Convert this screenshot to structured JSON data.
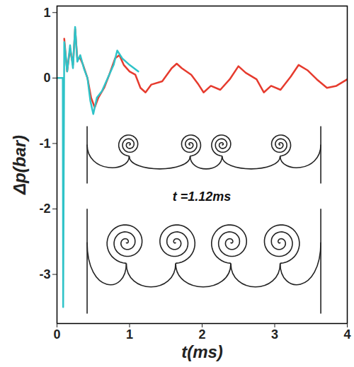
{
  "chart_data": {
    "type": "line",
    "x_label": "t(ms)",
    "y_label": "Δp(bar)",
    "annotation": "t =1.12ms",
    "xlim": [
      0,
      4
    ],
    "ylim": [
      -3.75,
      1.1
    ],
    "xticks": [
      0,
      1,
      2,
      3,
      4
    ],
    "yticks": [
      -3,
      -2,
      -1,
      0,
      1
    ],
    "grid": false,
    "series": [
      {
        "color": "#e63b2e",
        "x": [
          0.1,
          0.14,
          0.18,
          0.22,
          0.25,
          0.28,
          0.32,
          0.36,
          0.42,
          0.47,
          0.52,
          0.57,
          0.65,
          0.72,
          0.8,
          0.86,
          0.92,
          1.0,
          1.08,
          1.15,
          1.22,
          1.3,
          1.45,
          1.58,
          1.65,
          1.72,
          1.85,
          1.95,
          2.02,
          2.12,
          2.25,
          2.38,
          2.5,
          2.6,
          2.75,
          2.85,
          2.95,
          3.08,
          3.22,
          3.33,
          3.45,
          3.58,
          3.72,
          3.85,
          4.0
        ],
        "values": [
          0.6,
          0.1,
          0.45,
          0.2,
          0.75,
          0.3,
          0.3,
          0.2,
          0.0,
          -0.3,
          -0.45,
          -0.3,
          -0.15,
          0.05,
          0.3,
          0.35,
          0.2,
          0.1,
          0.05,
          -0.15,
          -0.22,
          -0.1,
          -0.05,
          0.15,
          0.22,
          0.15,
          0.05,
          -0.1,
          -0.22,
          -0.12,
          -0.18,
          -0.02,
          0.18,
          0.08,
          -0.02,
          -0.22,
          -0.12,
          -0.18,
          0.02,
          0.2,
          0.12,
          -0.02,
          -0.15,
          -0.12,
          -0.02
        ]
      },
      {
        "color": "#2fc3c8",
        "x": [
          0.0,
          0.08,
          0.085,
          0.1,
          0.14,
          0.18,
          0.22,
          0.25,
          0.28,
          0.32,
          0.37,
          0.42,
          0.46,
          0.5,
          0.55,
          0.62,
          0.7,
          0.78,
          0.83,
          0.9,
          1.0,
          1.12
        ],
        "values": [
          0.0,
          0.0,
          -3.5,
          0.55,
          0.1,
          0.5,
          0.15,
          0.78,
          0.25,
          0.35,
          0.15,
          0.0,
          -0.35,
          -0.55,
          -0.3,
          -0.2,
          0.0,
          0.2,
          0.42,
          0.3,
          0.2,
          0.1
        ]
      }
    ]
  }
}
